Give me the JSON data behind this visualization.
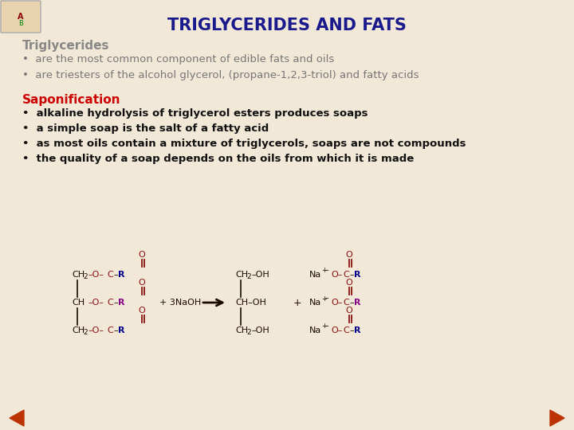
{
  "title": "TRIGLYCERIDES AND FATS",
  "title_color": "#1a1a8c",
  "title_fontsize": 15,
  "bg_color": "#f2e8d8",
  "section1_header": "Triglycerides",
  "section1_header_color": "#888888",
  "section1_bullets": [
    "are the most common component of edible fats and oils",
    "are triesters of the alcohol glycerol, (propane-1,2,3-triol) and fatty acids"
  ],
  "section1_bullet_color": "#777777",
  "section2_header": "Saponification",
  "section2_header_color": "#cc0000",
  "section2_bullets": [
    "alkaline hydrolysis of triglycerol esters produces soaps",
    "a simple soap is the salt of a fatty acid",
    "as most oils contain a mixture of triglycerols, soaps are not compounds",
    "the quality of a soap depends on the oils from which it is made"
  ],
  "section2_bullet_color": "#111111",
  "bullet_fontsize": 9.5,
  "header1_fontsize": 11,
  "header2_fontsize": 11,
  "chem_color_black": "#1a0a00",
  "chem_color_red": "#8b1010",
  "chem_color_blue": "#00008b",
  "chem_color_purple": "#880088",
  "nav_arrow_color": "#bb3300"
}
